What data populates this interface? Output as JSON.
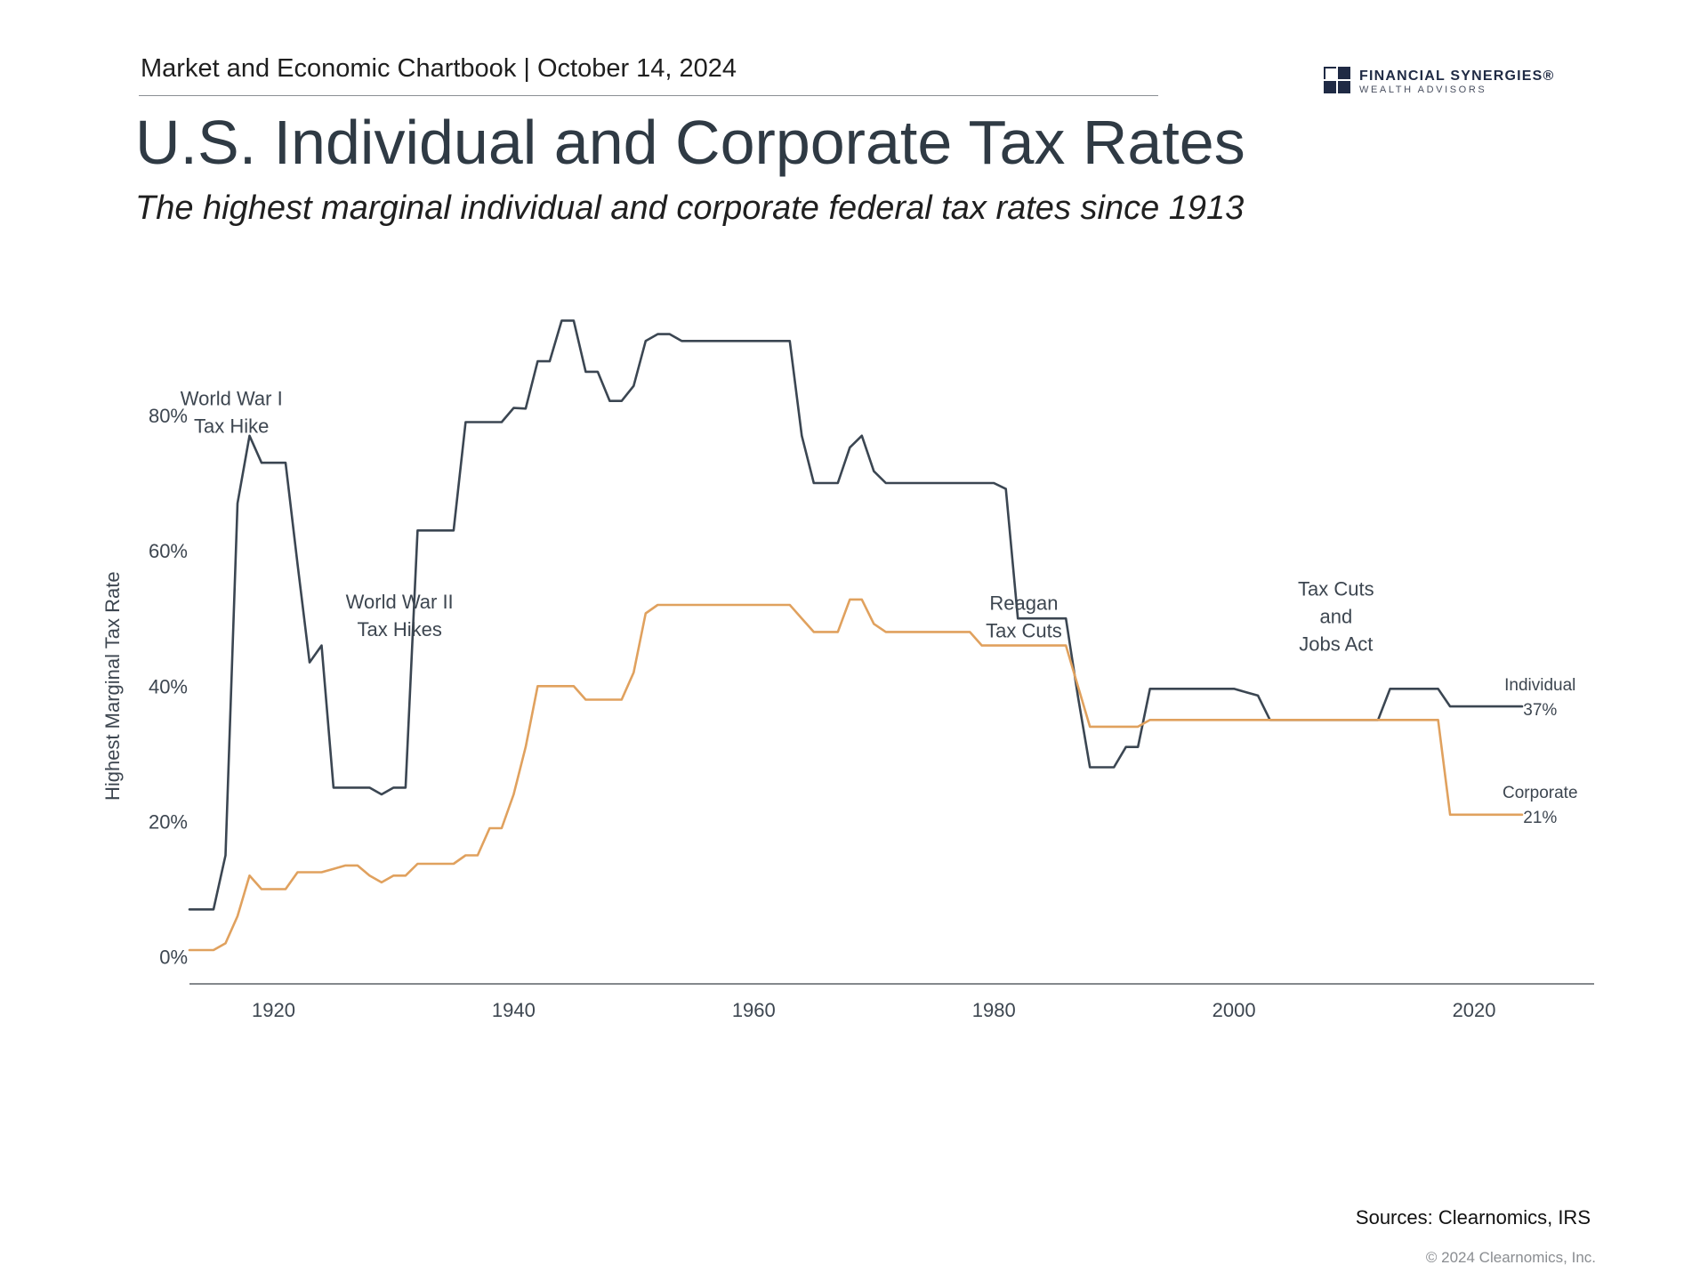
{
  "header": {
    "chartbook": "Market and Economic Chartbook | October 14, 2024",
    "logo_name": "FINANCIAL SYNERGIES®",
    "logo_sub": "WEALTH ADVISORS"
  },
  "title": "U.S. Individual and Corporate Tax Rates",
  "subtitle": "The highest marginal individual and corporate federal tax rates since 1913",
  "footer": {
    "sources": "Sources: Clearnomics, IRS",
    "copyright": "© 2024 Clearnomics, Inc."
  },
  "chart_data": {
    "type": "line",
    "ylabel": "Highest Marginal Tax Rate",
    "xlabel": "",
    "xlim": [
      1913,
      2030
    ],
    "ylim": [
      -4,
      98
    ],
    "x_ticks": [
      1920,
      1940,
      1960,
      1980,
      2000,
      2020
    ],
    "y_ticks": [
      0,
      20,
      40,
      60,
      80
    ],
    "y_tick_labels": [
      "0%",
      "20%",
      "40%",
      "60%",
      "80%"
    ],
    "grid": false,
    "colors": {
      "individual": "#3b4652",
      "corporate": "#e0a15e",
      "axis": "#5c6166",
      "text": "#3d4650"
    },
    "annotations": [
      {
        "lines": [
          "World War I",
          "Tax Hike"
        ],
        "x": 1916.5,
        "y": 81.5
      },
      {
        "lines": [
          "World War II",
          "Tax Hikes"
        ],
        "x": 1930.5,
        "y": 51.5
      },
      {
        "lines": [
          "Reagan",
          "Tax Cuts"
        ],
        "x": 1982.5,
        "y": 51.3
      },
      {
        "lines": [
          "Tax Cuts",
          "and",
          "Jobs Act"
        ],
        "x": 2008.5,
        "y": 53.4
      }
    ],
    "end_labels": [
      {
        "lines": [
          "Individual",
          "37%"
        ],
        "x": 2025.5,
        "y": 39.4
      },
      {
        "lines": [
          "Corporate",
          "21%"
        ],
        "x": 2025.5,
        "y": 23.5
      }
    ],
    "series": [
      {
        "name": "Individual",
        "x": [
          1913,
          1914,
          1915,
          1916,
          1917,
          1918,
          1919,
          1920,
          1921,
          1922,
          1923,
          1924,
          1925,
          1926,
          1927,
          1928,
          1929,
          1930,
          1931,
          1932,
          1933,
          1934,
          1935,
          1936,
          1937,
          1938,
          1939,
          1940,
          1941,
          1942,
          1943,
          1944,
          1945,
          1946,
          1947,
          1948,
          1949,
          1950,
          1951,
          1952,
          1953,
          1954,
          1955,
          1960,
          1963,
          1964,
          1965,
          1966,
          1967,
          1968,
          1969,
          1970,
          1971,
          1975,
          1980,
          1981,
          1982,
          1986,
          1987,
          1988,
          1990,
          1991,
          1992,
          1993,
          2000,
          2001,
          2002,
          2003,
          2010,
          2012,
          2013,
          2017,
          2018,
          2024
        ],
        "values": [
          7,
          7,
          7,
          15,
          67,
          77,
          73,
          73,
          73,
          58,
          43.5,
          46,
          25,
          25,
          25,
          25,
          24,
          25,
          25,
          63,
          63,
          63,
          63,
          79,
          79,
          79,
          79,
          81.1,
          81,
          88,
          88,
          94,
          94,
          86.45,
          86.45,
          82.13,
          82.13,
          84.36,
          91,
          92,
          92,
          91,
          91,
          91,
          91,
          77,
          70,
          70,
          70,
          75.25,
          77,
          71.75,
          70,
          70,
          70,
          69.13,
          50,
          50,
          38.5,
          28,
          28,
          31,
          31,
          39.6,
          39.6,
          39.1,
          38.6,
          35,
          35,
          35,
          39.6,
          39.6,
          37,
          37
        ]
      },
      {
        "name": "Corporate",
        "x": [
          1913,
          1914,
          1915,
          1916,
          1917,
          1918,
          1919,
          1920,
          1921,
          1922,
          1923,
          1924,
          1925,
          1926,
          1927,
          1928,
          1929,
          1930,
          1931,
          1932,
          1933,
          1934,
          1935,
          1936,
          1937,
          1938,
          1939,
          1940,
          1941,
          1942,
          1943,
          1945,
          1946,
          1947,
          1948,
          1949,
          1950,
          1951,
          1952,
          1953,
          1954,
          1963,
          1964,
          1965,
          1966,
          1967,
          1968,
          1969,
          1970,
          1971,
          1978,
          1979,
          1980,
          1986,
          1987,
          1988,
          1991,
          1992,
          1993,
          2017,
          2018,
          2024
        ],
        "values": [
          1,
          1,
          1,
          2,
          6,
          12,
          10,
          10,
          10,
          12.5,
          12.5,
          12.5,
          13,
          13.5,
          13.5,
          12,
          11,
          12,
          12,
          13.75,
          13.75,
          13.75,
          13.75,
          15,
          15,
          19,
          19,
          24,
          31,
          40,
          40,
          40,
          38,
          38,
          38,
          38,
          42,
          50.75,
          52,
          52,
          52,
          52,
          50,
          48,
          48,
          48,
          52.8,
          52.8,
          49.2,
          48,
          48,
          46,
          46,
          46,
          40,
          34,
          34,
          34,
          35,
          35,
          21,
          21
        ]
      }
    ]
  }
}
